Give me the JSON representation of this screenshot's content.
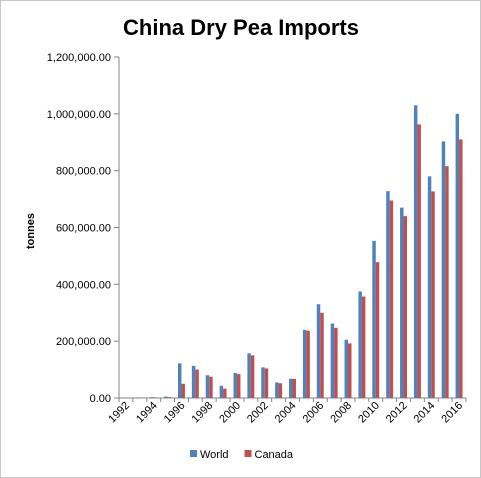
{
  "chart_data": {
    "type": "bar",
    "title": "China Dry Pea Imports",
    "xlabel": "",
    "ylabel": "tonnes",
    "ylim": [
      0,
      1200000
    ],
    "y_ticks": [
      0,
      200000,
      400000,
      600000,
      800000,
      1000000,
      1200000
    ],
    "y_tick_labels": [
      "0.00",
      "200,000.00",
      "400,000.00",
      "600,000.00",
      "800,000.00",
      "1,000,000.00",
      "1,200,000.00"
    ],
    "categories": [
      "1992",
      "1993",
      "1994",
      "1995",
      "1996",
      "1997",
      "1998",
      "1999",
      "2000",
      "2001",
      "2002",
      "2003",
      "2004",
      "2005",
      "2006",
      "2007",
      "2008",
      "2009",
      "2010",
      "2011",
      "2012",
      "2013",
      "2014",
      "2015",
      "2016"
    ],
    "x_tick_labels": [
      "1992",
      "",
      "1994",
      "",
      "1996",
      "",
      "1998",
      "",
      "2000",
      "",
      "2002",
      "",
      "2004",
      "",
      "2006",
      "",
      "2008",
      "",
      "2010",
      "",
      "2012",
      "",
      "2014",
      "",
      "2016"
    ],
    "grid": false,
    "legend_position": "bottom",
    "series": [
      {
        "name": "World",
        "color": "#4f81bd",
        "values": [
          1000,
          2000,
          3000,
          5000,
          122000,
          113000,
          80000,
          43000,
          88000,
          157000,
          108000,
          55000,
          68000,
          240000,
          330000,
          262000,
          205000,
          375000,
          553000,
          728000,
          670000,
          1030000,
          780000,
          903000,
          1000000
        ]
      },
      {
        "name": "Canada",
        "color": "#c0504d",
        "values": [
          500,
          1000,
          2000,
          3000,
          50000,
          100000,
          75000,
          33000,
          84000,
          150000,
          104000,
          52000,
          67000,
          237000,
          300000,
          247000,
          192000,
          357000,
          478000,
          695000,
          640000,
          963000,
          727000,
          816000,
          910000
        ]
      }
    ]
  }
}
